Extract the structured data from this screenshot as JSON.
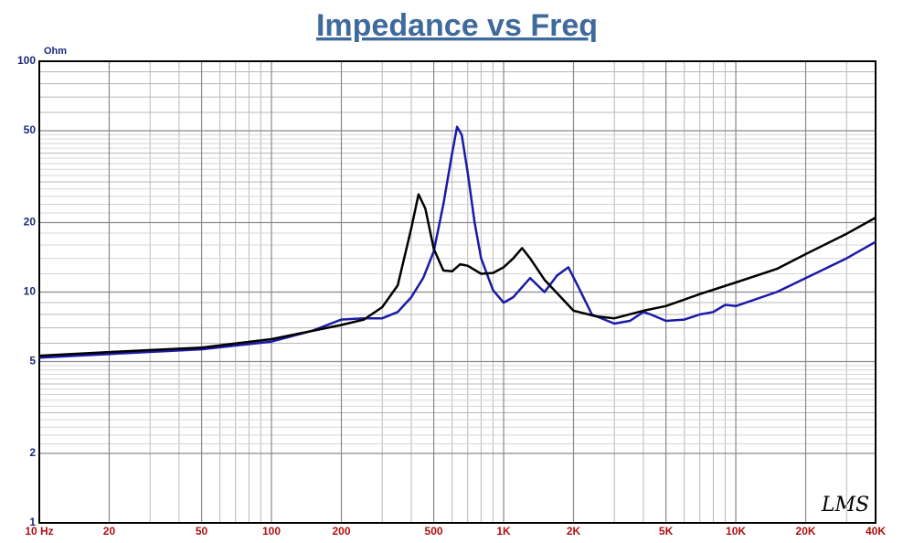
{
  "chart_data": {
    "type": "line",
    "title": "Impedance vs Freq",
    "y_label": "Ohm",
    "watermark": "LMS",
    "xscale": "log",
    "yscale": "log",
    "grid": true,
    "minor_grid": true,
    "xlim": [
      10,
      40000
    ],
    "ylim": [
      1,
      100
    ],
    "xticks": [
      {
        "value": 10,
        "label": "10  Hz"
      },
      20,
      50,
      100,
      200,
      500,
      {
        "value": 1000,
        "label": "1K"
      },
      {
        "value": 2000,
        "label": "2K"
      },
      {
        "value": 5000,
        "label": "5K"
      },
      {
        "value": 10000,
        "label": "10K"
      },
      {
        "value": 20000,
        "label": "20K"
      },
      {
        "value": 40000,
        "label": "40K"
      }
    ],
    "yticks": [
      1,
      2,
      5,
      10,
      20,
      50,
      100
    ],
    "series": [
      {
        "color": "#000000",
        "x": [
          10,
          20,
          50,
          100,
          200,
          250,
          300,
          350,
          400,
          430,
          460,
          500,
          550,
          600,
          650,
          700,
          800,
          900,
          1000,
          1100,
          1200,
          1300,
          1500,
          1800,
          2000,
          2500,
          3000,
          4000,
          5000,
          7000,
          10000,
          15000,
          20000,
          30000,
          40000
        ],
        "values": [
          5.3,
          5.5,
          5.75,
          6.25,
          7.2,
          7.6,
          8.6,
          10.7,
          18.9,
          26.5,
          23,
          15.4,
          12.4,
          12.3,
          13.2,
          13,
          12,
          12.1,
          12.8,
          14,
          15.5,
          14,
          11.3,
          9.3,
          8.3,
          7.85,
          7.7,
          8.3,
          8.7,
          9.8,
          11,
          12.6,
          14.6,
          17.9,
          21
        ]
      },
      {
        "color": "#1a1aa8",
        "x": [
          10,
          50,
          100,
          150,
          200,
          250,
          300,
          350,
          400,
          450,
          500,
          550,
          600,
          630,
          660,
          700,
          750,
          800,
          900,
          1000,
          1100,
          1300,
          1500,
          1700,
          1900,
          2100,
          2400,
          3000,
          3500,
          4000,
          4300,
          5000,
          6000,
          7000,
          8000,
          9000,
          10000,
          15000,
          20000,
          30000,
          40000
        ],
        "values": [
          5.2,
          5.65,
          6.1,
          6.8,
          7.6,
          7.7,
          7.7,
          8.2,
          9.5,
          11.5,
          15,
          24,
          40,
          52,
          48,
          33,
          20,
          14,
          10.2,
          9,
          9.5,
          11.5,
          10,
          11.8,
          12.8,
          10.5,
          8,
          7.3,
          7.5,
          8.2,
          8,
          7.5,
          7.6,
          8,
          8.2,
          8.8,
          8.7,
          10,
          11.5,
          14,
          16.5
        ]
      }
    ]
  }
}
